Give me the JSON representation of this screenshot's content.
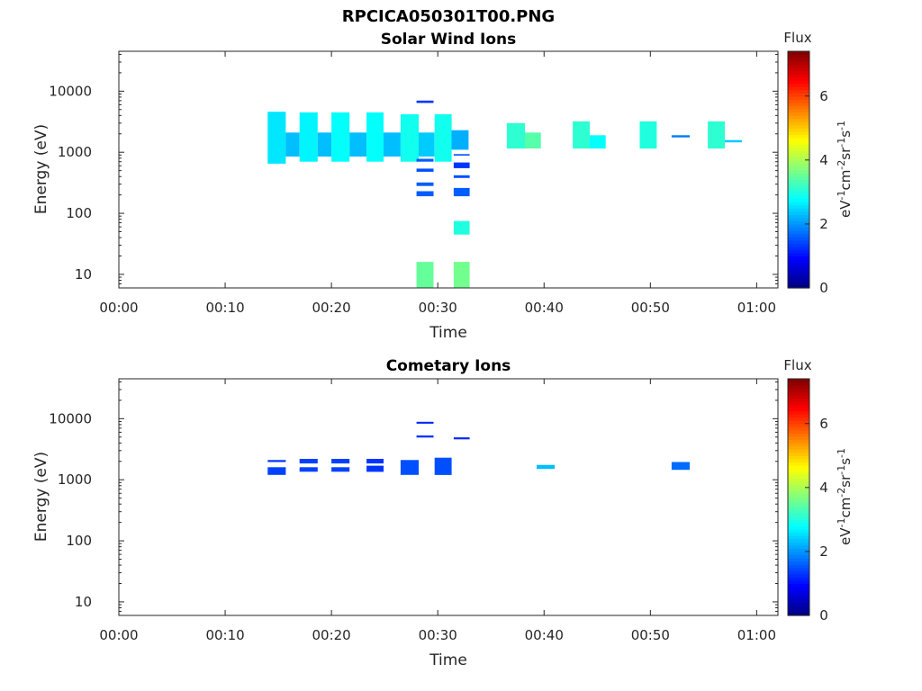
{
  "figure_title": "RPCICA050301T00.PNG",
  "colorbar": {
    "title": "Flux",
    "unit_label_parts": [
      {
        "t": "eV",
        "sup": false
      },
      {
        "t": "-1",
        "sup": true
      },
      {
        "t": "cm",
        "sup": false
      },
      {
        "t": "-2",
        "sup": true
      },
      {
        "t": "sr",
        "sup": false
      },
      {
        "t": "-1",
        "sup": true
      },
      {
        "t": "s",
        "sup": false
      },
      {
        "t": "-1",
        "sup": true
      }
    ],
    "range": [
      0,
      7.4
    ],
    "ticks": [
      0,
      2,
      4,
      6
    ],
    "colormap": "jet"
  },
  "chart_data": [
    {
      "type": "heatmap",
      "title": "Solar Wind Ions",
      "xlabel": "Time",
      "ylabel": "Energy (eV)",
      "x_unit": "minutes after 00:00",
      "xlim": [
        0,
        62
      ],
      "ylim": [
        6,
        45000
      ],
      "yscale": "log",
      "x_tick_labels": [
        "00:00",
        "00:10",
        "00:20",
        "00:30",
        "00:40",
        "00:50",
        "01:00"
      ],
      "y_tick_labels": [
        "10",
        "100",
        "1000",
        "10000"
      ],
      "cells": [
        {
          "t0": 14.0,
          "t1": 15.7,
          "e0": 650,
          "e1": 4600,
          "flux": 2.6
        },
        {
          "t0": 15.7,
          "t1": 17.0,
          "e0": 850,
          "e1": 2100,
          "flux": 2.3
        },
        {
          "t0": 17.0,
          "t1": 18.7,
          "e0": 700,
          "e1": 4500,
          "flux": 2.7
        },
        {
          "t0": 18.7,
          "t1": 20.0,
          "e0": 850,
          "e1": 2100,
          "flux": 2.3
        },
        {
          "t0": 20.0,
          "t1": 21.7,
          "e0": 700,
          "e1": 4500,
          "flux": 2.8
        },
        {
          "t0": 21.7,
          "t1": 23.3,
          "e0": 850,
          "e1": 2100,
          "flux": 2.3
        },
        {
          "t0": 23.3,
          "t1": 24.9,
          "e0": 700,
          "e1": 4500,
          "flux": 2.8
        },
        {
          "t0": 24.9,
          "t1": 26.5,
          "e0": 850,
          "e1": 2100,
          "flux": 2.3
        },
        {
          "t0": 26.5,
          "t1": 28.2,
          "e0": 700,
          "e1": 4200,
          "flux": 2.9
        },
        {
          "t0": 28.2,
          "t1": 29.7,
          "e0": 850,
          "e1": 2100,
          "flux": 2.4
        },
        {
          "t0": 29.7,
          "t1": 31.3,
          "e0": 700,
          "e1": 4200,
          "flux": 2.9
        },
        {
          "t0": 31.3,
          "t1": 32.9,
          "e0": 1100,
          "e1": 2300,
          "flux": 2.2
        },
        {
          "t0": 28.0,
          "t1": 29.6,
          "e0": 6400,
          "e1": 7000,
          "flux": 1.3
        },
        {
          "t0": 28.0,
          "t1": 29.6,
          "e0": 700,
          "e1": 780,
          "flux": 1.6
        },
        {
          "t0": 28.0,
          "t1": 29.6,
          "e0": 480,
          "e1": 540,
          "flux": 1.5
        },
        {
          "t0": 28.0,
          "t1": 29.6,
          "e0": 280,
          "e1": 320,
          "flux": 1.6
        },
        {
          "t0": 28.0,
          "t1": 29.6,
          "e0": 190,
          "e1": 230,
          "flux": 1.6
        },
        {
          "t0": 28.0,
          "t1": 29.6,
          "e0": 6,
          "e1": 16,
          "flux": 3.5
        },
        {
          "t0": 31.5,
          "t1": 33.0,
          "e0": 880,
          "e1": 930,
          "flux": 1.5
        },
        {
          "t0": 31.5,
          "t1": 33.0,
          "e0": 550,
          "e1": 680,
          "flux": 1.3
        },
        {
          "t0": 31.5,
          "t1": 33.0,
          "e0": 380,
          "e1": 420,
          "flux": 1.5
        },
        {
          "t0": 31.5,
          "t1": 33.0,
          "e0": 190,
          "e1": 260,
          "flux": 1.6
        },
        {
          "t0": 31.5,
          "t1": 33.0,
          "e0": 45,
          "e1": 75,
          "flux": 3.0
        },
        {
          "t0": 31.5,
          "t1": 33.0,
          "e0": 6,
          "e1": 16,
          "flux": 3.6
        },
        {
          "t0": 36.5,
          "t1": 38.2,
          "e0": 1150,
          "e1": 3000,
          "flux": 3.1
        },
        {
          "t0": 38.2,
          "t1": 39.7,
          "e0": 1150,
          "e1": 2100,
          "flux": 3.4
        },
        {
          "t0": 42.7,
          "t1": 44.3,
          "e0": 1150,
          "e1": 3200,
          "flux": 3.1
        },
        {
          "t0": 44.3,
          "t1": 45.8,
          "e0": 1150,
          "e1": 1900,
          "flux": 2.8
        },
        {
          "t0": 49.0,
          "t1": 50.6,
          "e0": 1150,
          "e1": 3200,
          "flux": 3.0
        },
        {
          "t0": 52.0,
          "t1": 53.7,
          "e0": 1750,
          "e1": 1900,
          "flux": 1.8
        },
        {
          "t0": 55.4,
          "t1": 57.0,
          "e0": 1150,
          "e1": 3200,
          "flux": 3.1
        },
        {
          "t0": 57.0,
          "t1": 58.6,
          "e0": 1450,
          "e1": 1580,
          "flux": 2.4
        }
      ]
    },
    {
      "type": "heatmap",
      "title": "Cometary Ions",
      "xlabel": "Time",
      "ylabel": "Energy (eV)",
      "x_unit": "minutes after 00:00",
      "xlim": [
        0,
        62
      ],
      "ylim": [
        6,
        45000
      ],
      "yscale": "log",
      "x_tick_labels": [
        "00:00",
        "00:10",
        "00:20",
        "00:30",
        "00:40",
        "00:50",
        "01:00"
      ],
      "y_tick_labels": [
        "10",
        "100",
        "1000",
        "10000"
      ],
      "cells": [
        {
          "t0": 14.0,
          "t1": 15.7,
          "e0": 1950,
          "e1": 2100,
          "flux": 1.3
        },
        {
          "t0": 14.0,
          "t1": 15.7,
          "e0": 1200,
          "e1": 1600,
          "flux": 1.4
        },
        {
          "t0": 17.0,
          "t1": 18.7,
          "e0": 1850,
          "e1": 2200,
          "flux": 1.4
        },
        {
          "t0": 17.0,
          "t1": 18.7,
          "e0": 1350,
          "e1": 1600,
          "flux": 1.4
        },
        {
          "t0": 20.0,
          "t1": 21.7,
          "e0": 1850,
          "e1": 2200,
          "flux": 1.4
        },
        {
          "t0": 20.0,
          "t1": 21.7,
          "e0": 1350,
          "e1": 1600,
          "flux": 1.4
        },
        {
          "t0": 23.3,
          "t1": 24.9,
          "e0": 1850,
          "e1": 2200,
          "flux": 1.3
        },
        {
          "t0": 23.3,
          "t1": 24.9,
          "e0": 1350,
          "e1": 1700,
          "flux": 1.3
        },
        {
          "t0": 26.5,
          "t1": 28.2,
          "e0": 1200,
          "e1": 2100,
          "flux": 1.5
        },
        {
          "t0": 28.0,
          "t1": 29.6,
          "e0": 8300,
          "e1": 8900,
          "flux": 1.2
        },
        {
          "t0": 28.0,
          "t1": 29.6,
          "e0": 4900,
          "e1": 5300,
          "flux": 1.3
        },
        {
          "t0": 29.7,
          "t1": 31.3,
          "e0": 1200,
          "e1": 2300,
          "flux": 1.5
        },
        {
          "t0": 31.5,
          "t1": 33.0,
          "e0": 4600,
          "e1": 4950,
          "flux": 1.2
        },
        {
          "t0": 39.3,
          "t1": 41.0,
          "e0": 1500,
          "e1": 1750,
          "flux": 2.3
        },
        {
          "t0": 52.0,
          "t1": 53.7,
          "e0": 1450,
          "e1": 1950,
          "flux": 1.7
        }
      ]
    }
  ]
}
